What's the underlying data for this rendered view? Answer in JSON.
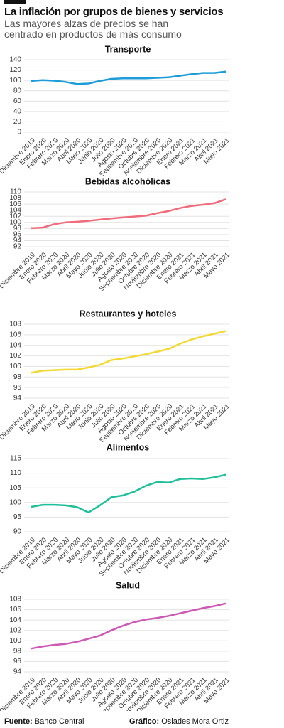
{
  "header": {
    "title": "La inflación por grupos de bienes y servicios",
    "subtitle": "Las mayores alzas de precios se han centrado en productos de más consumo"
  },
  "chart_data": [
    {
      "type": "line",
      "title": "Transporte",
      "color": "#1e9cd7",
      "categories": [
        "Diciembre 2019",
        "Enero 2020",
        "Febrero 2020",
        "Marzo 2020",
        "Abril 2020",
        "Mayo 2020",
        "Junio 2020",
        "Julio 2020",
        "Agosto 2020",
        "Septiembre 2020",
        "Octubre 2020",
        "Noviembre 2020",
        "Diciembre 2020",
        "Enero 2021",
        "Febrero 2021",
        "Marzo 2021",
        "Abril 2021",
        "Mayo 2021"
      ],
      "values": [
        99,
        100.5,
        99.5,
        97,
        93,
        94,
        99,
        103,
        104,
        104,
        104,
        105,
        106,
        109,
        112,
        114.5,
        114.5,
        117
      ],
      "ylim": [
        0,
        140
      ],
      "yticks": [
        0,
        20,
        40,
        60,
        80,
        100,
        120,
        140
      ],
      "grid": true
    },
    {
      "type": "line",
      "title": "Bebidas alcohólicas",
      "color": "#f06b7c",
      "categories": [
        "Diciembre 2019",
        "Enero 2020",
        "Febrero 2020",
        "Marzo 2020",
        "Abril 2020",
        "Mayo 2020",
        "Junio 2020",
        "Julio 2020",
        "Agosto 2020",
        "Septiembre 2020",
        "Octubre 2020",
        "Noviembre 2020",
        "Diciembre 2020",
        "Enero 2021",
        "Febrero 2021",
        "Marzo 2021",
        "Abril 2021",
        "Mayo 2021"
      ],
      "values": [
        98.1,
        98.3,
        99.4,
        100.0,
        100.2,
        100.5,
        100.9,
        101.3,
        101.6,
        101.9,
        102.2,
        103.0,
        103.7,
        104.7,
        105.4,
        105.8,
        106.3,
        107.6
      ],
      "ylim": [
        92,
        110
      ],
      "yticks": [
        92,
        94,
        96,
        98,
        100,
        102,
        104,
        106,
        108,
        110
      ],
      "grid": true
    },
    {
      "type": "line",
      "title": "Restaurantes y hoteles",
      "color": "#f2d935",
      "categories": [
        "Diciembre 2019",
        "Enero 2020",
        "Febrero 2020",
        "Marzo 2020",
        "Abril 2020",
        "Mayo 2020",
        "Junio 2020",
        "Julio 2020",
        "Agosto 2020",
        "Septiembre 2020",
        "Octubre 2020",
        "Noviembre 2020",
        "Diciembre 2020",
        "Enero 2021",
        "Febrero 2021",
        "Marzo 2021",
        "Abril 2021",
        "Mayo 2021"
      ],
      "values": [
        98.8,
        99.2,
        99.3,
        99.4,
        99.4,
        99.8,
        100.3,
        101.2,
        101.5,
        101.9,
        102.3,
        102.8,
        103.3,
        104.3,
        105.1,
        105.7,
        106.2,
        106.7
      ],
      "ylim": [
        94,
        108
      ],
      "yticks": [
        94,
        96,
        98,
        100,
        102,
        104,
        106,
        108
      ],
      "grid": true
    },
    {
      "type": "line",
      "title": "Alimentos",
      "color": "#1fbf9a",
      "categories": [
        "Diciembre 2019",
        "Enero 2020",
        "Febrero 2020",
        "Marzo 2020",
        "Abril 2020",
        "Mayo 2020",
        "Junio 2020",
        "Julio 2020",
        "Agosto 2020",
        "Septiembre 2020",
        "Octubre 2020",
        "Noviembre 2020",
        "Diciembre 2020",
        "Enero 2021",
        "Febrero 2021",
        "Marzo 2021",
        "Abril 2021",
        "Mayo 2021"
      ],
      "values": [
        98.5,
        99.2,
        99.2,
        99.0,
        98.4,
        96.6,
        99.0,
        101.8,
        102.4,
        103.7,
        105.7,
        107.0,
        106.8,
        108.0,
        108.2,
        108.0,
        108.6,
        109.5
      ],
      "ylim": [
        90,
        115
      ],
      "yticks": [
        90,
        95,
        100,
        105,
        110,
        115
      ],
      "grid": true
    },
    {
      "type": "line",
      "title": "Salud",
      "color": "#cc5ab5",
      "categories": [
        "Diciembre 2019",
        "Enero 2020",
        "Febrero 2020",
        "Marzo 2020",
        "Abril 2020",
        "Mayo 2020",
        "Junio 2020",
        "Julio 2020",
        "Agosto 2020",
        "Septiembre 2020",
        "Octubre 2020",
        "Noviembre 2020",
        "Diciembre 2020",
        "Enero 2021",
        "Febrero 2021",
        "Marzo 2021",
        "Abril 2021",
        "Mayo 2021"
      ],
      "values": [
        98.5,
        98.9,
        99.2,
        99.4,
        99.8,
        100.4,
        101.0,
        102.0,
        102.9,
        103.6,
        104.1,
        104.4,
        104.8,
        105.3,
        105.8,
        106.3,
        106.7,
        107.2
      ],
      "ylim": [
        94,
        108
      ],
      "yticks": [
        94,
        96,
        98,
        100,
        102,
        104,
        106,
        108
      ],
      "grid": true
    }
  ],
  "footer": {
    "source_label": "Fuente:",
    "source": "Banco Central",
    "credit_label": "Gráfico:",
    "credit": "Osiades Mora Ortiz"
  }
}
